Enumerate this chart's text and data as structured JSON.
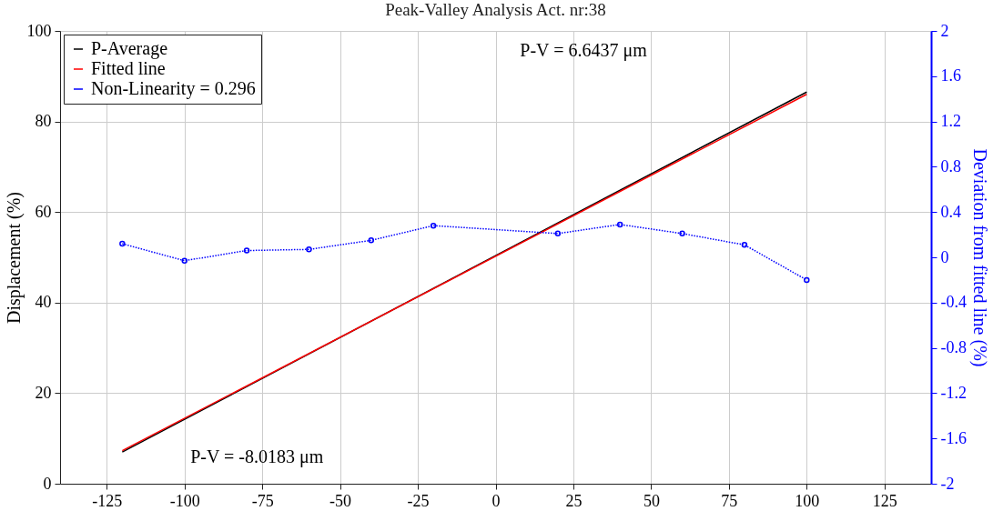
{
  "chart_data": {
    "type": "line",
    "title": "Peak-Valley Analysis Act. nr:38",
    "ylabel": "Displacement (%)",
    "y2label": "Deviation from fitted line (%)",
    "xlim": [
      -140,
      140
    ],
    "xticks": [
      -125,
      -100,
      -75,
      -50,
      -25,
      0,
      25,
      50,
      75,
      100,
      125
    ],
    "ylim": [
      0,
      100
    ],
    "yticks": [
      0,
      20,
      40,
      60,
      80,
      100
    ],
    "y2lim": [
      -2,
      2
    ],
    "y2ticks": [
      -2,
      -1.6,
      -1.2,
      -0.8,
      -0.4,
      0,
      0.4,
      0.8,
      1.2,
      1.6,
      2
    ],
    "grid": true,
    "legend": "top left",
    "annotations": [
      "P-V = 6.6437 μm",
      "P-V = -8.0183 μm"
    ],
    "series": [
      {
        "name": "P-Average",
        "color": "#000000",
        "x": [
          -120,
          100
        ],
        "values": [
          7.0,
          86.5
        ],
        "marker": "none",
        "line_style": "solid"
      },
      {
        "name": "Fitted line",
        "color": "#ff0000",
        "x": [
          -120,
          100
        ],
        "values": [
          7.3,
          86.0
        ],
        "marker": "none",
        "line_style": "solid"
      },
      {
        "name": "Non-Linearity = 0.296",
        "color": "#0000ff",
        "axis": "y2",
        "x": [
          -120,
          -100,
          -80,
          -60,
          -40,
          -20,
          20,
          40,
          60,
          80,
          100
        ],
        "values": [
          0.12,
          -0.03,
          0.06,
          0.07,
          0.15,
          0.28,
          0.21,
          0.29,
          0.21,
          0.11,
          -0.2
        ],
        "marker": "circle",
        "line_style": "dotted"
      }
    ]
  }
}
